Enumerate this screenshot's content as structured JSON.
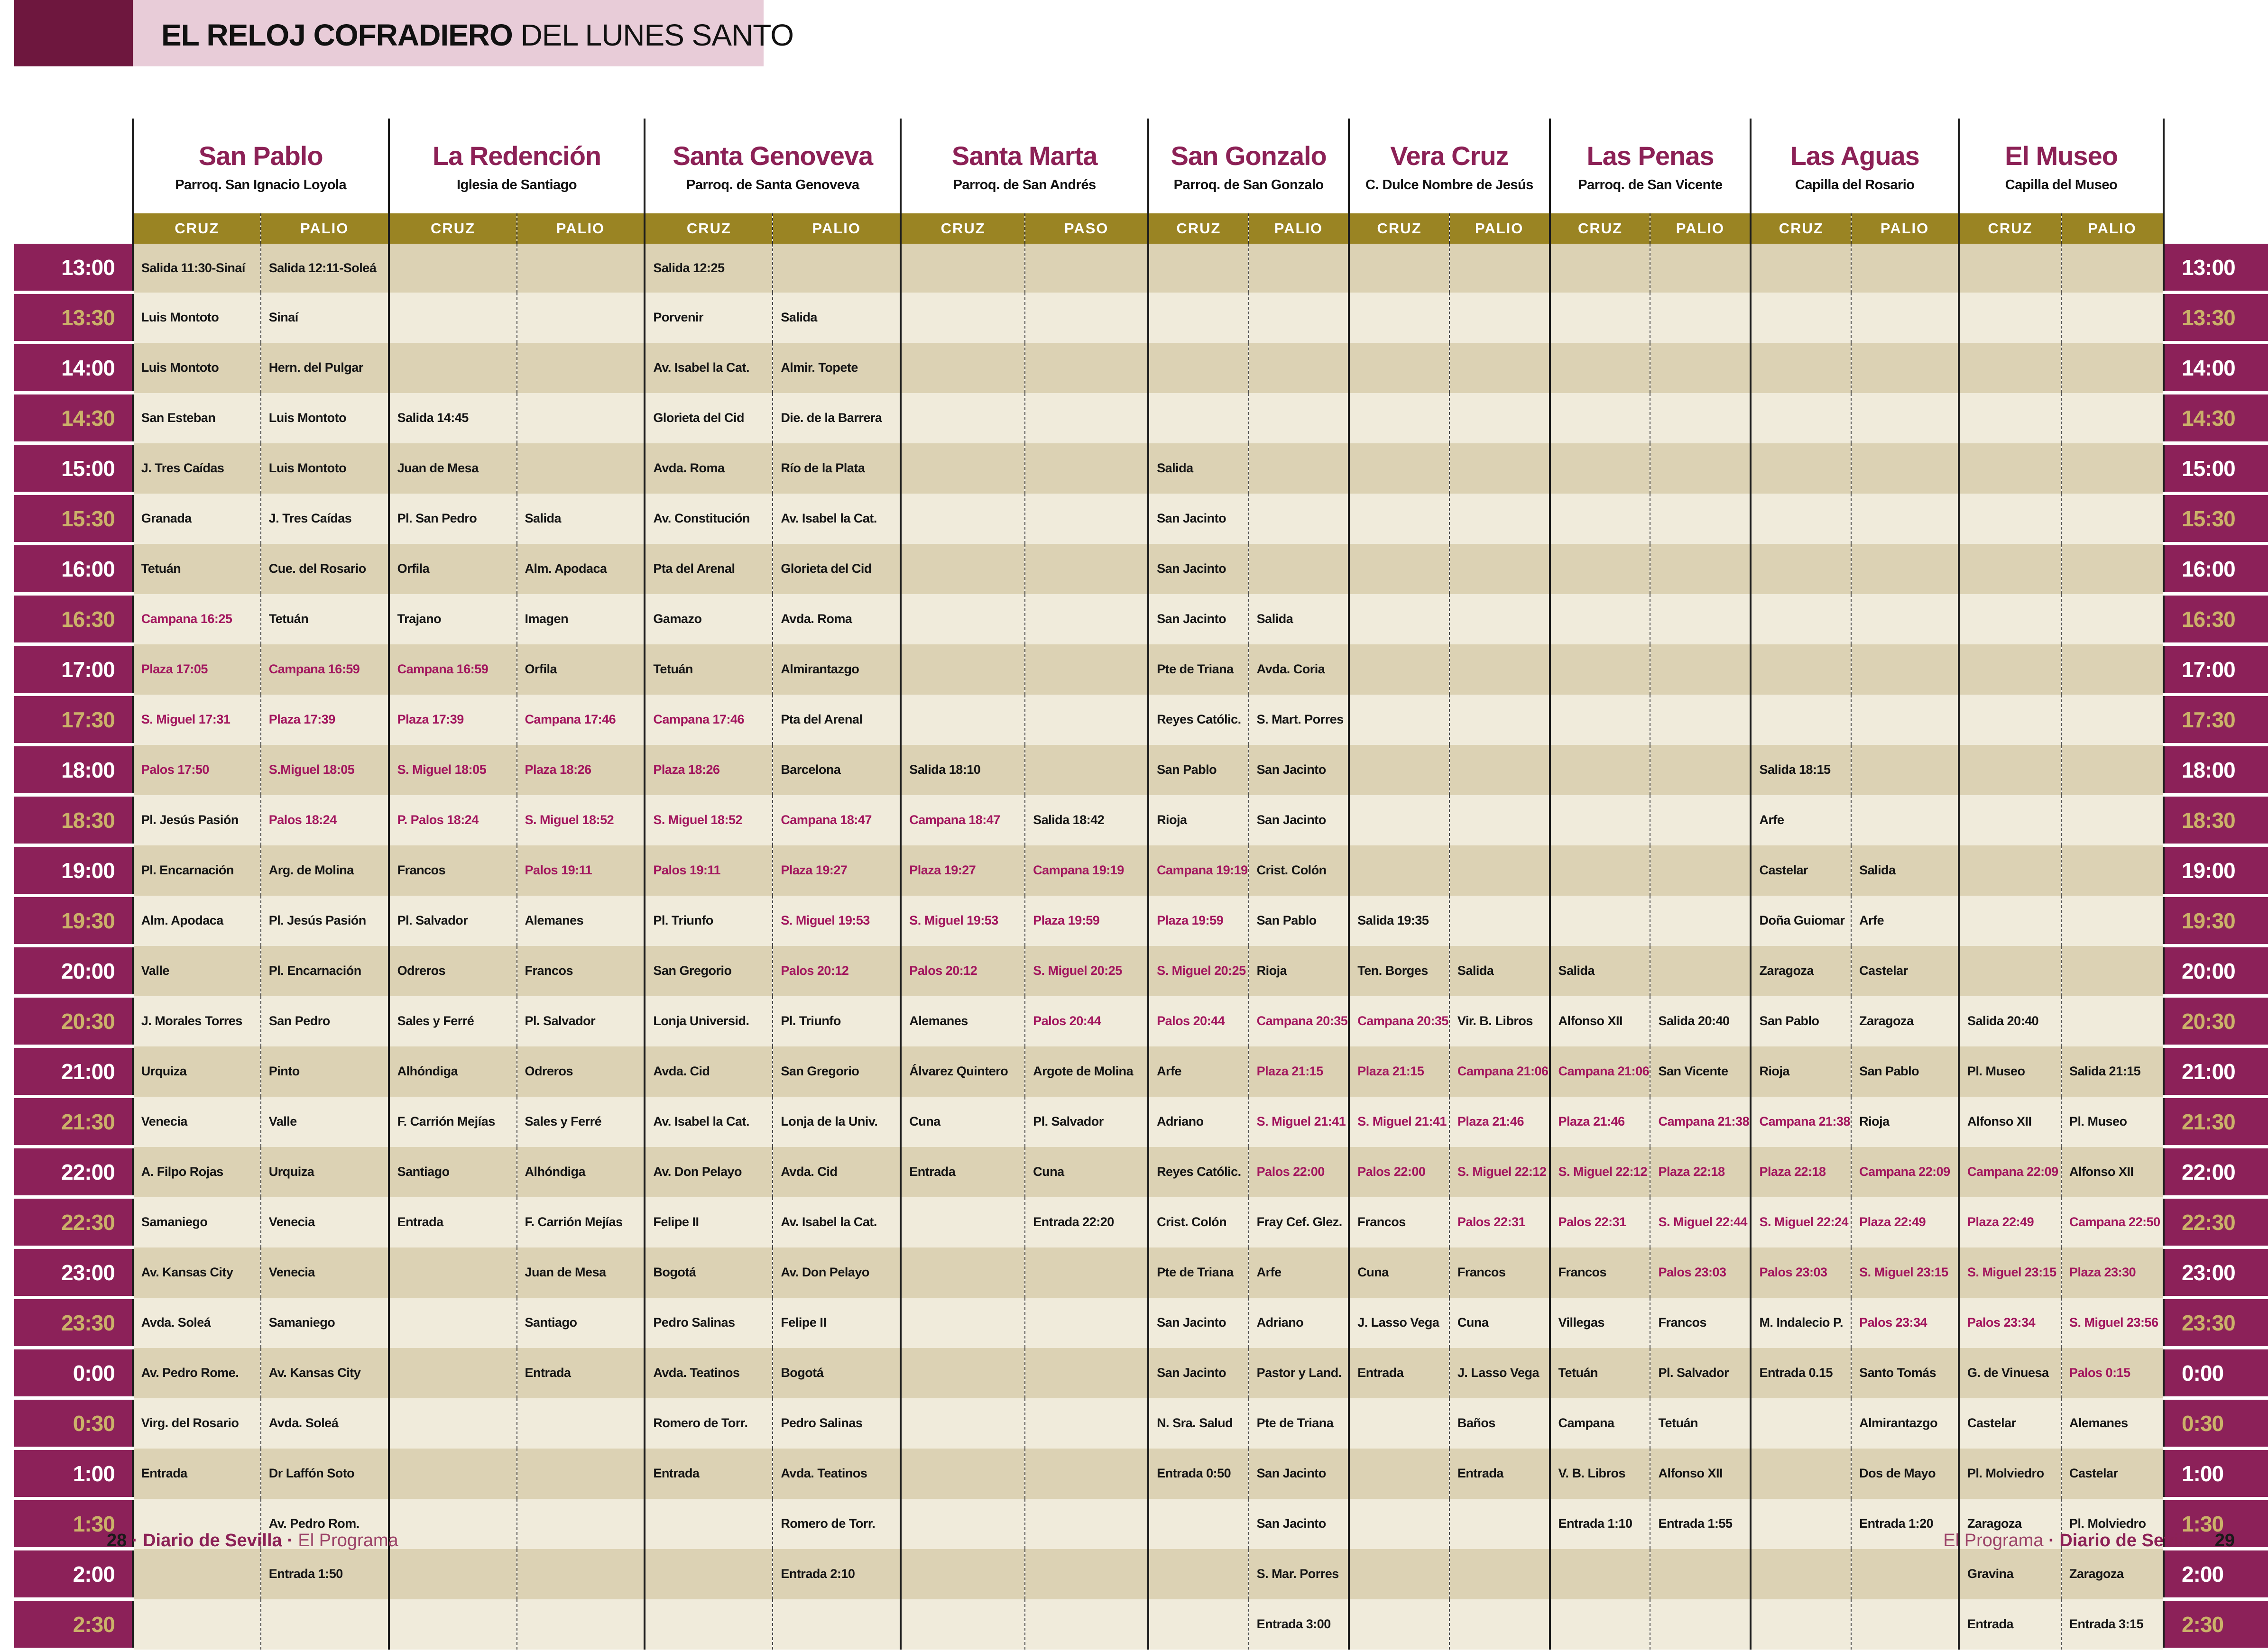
{
  "title": {
    "bold": "EL RELOJ COFRADIERO",
    "regular": " DEL LUNES SANTO"
  },
  "subcolumn_labels": {
    "cruz": "CRUZ",
    "palio": "PALIO",
    "paso": "PASO"
  },
  "times": [
    "13:00",
    "13:30",
    "14:00",
    "14:30",
    "15:00",
    "15:30",
    "16:00",
    "16:30",
    "17:00",
    "17:30",
    "18:00",
    "18:30",
    "19:00",
    "19:30",
    "20:00",
    "20:30",
    "21:00",
    "21:30",
    "22:00",
    "22:30",
    "23:00",
    "23:30",
    "0:00",
    "0:30",
    "1:00",
    "1:30",
    "2:00",
    "2:30"
  ],
  "hermandades": [
    {
      "name": "San Pablo",
      "church": "Parroq. San Ignacio Loyola",
      "sub1": "CRUZ",
      "sub2": "PALIO",
      "cruz": [
        "Salida 11:30-Sinaí",
        "Luis Montoto",
        "Luis Montoto",
        "San Esteban",
        "J. Tres Caídas",
        "Granada",
        "Tetuán",
        "Campana 16:25",
        "Plaza 17:05",
        "S. Miguel 17:31",
        "Palos 17:50",
        "Pl. Jesús Pasión",
        "Pl. Encarnación",
        "Alm. Apodaca",
        "Valle",
        "J. Morales Torres",
        "Urquiza",
        "Venecia",
        "A. Filpo Rojas",
        "Samaniego",
        "Av. Kansas City",
        "Avda. Soleá",
        "Av. Pedro Rome.",
        "Virg. del Rosario",
        "Entrada",
        "",
        "",
        ""
      ],
      "palio": [
        "Salida 12:11-Soleá",
        "Sinaí",
        "Hern. del Pulgar",
        "Luis Montoto",
        "Luis Montoto",
        "J. Tres Caídas",
        "Cue. del Rosario",
        "Tetuán",
        "Campana 16:59",
        "Plaza 17:39",
        "S.Miguel 18:05",
        "Palos 18:24",
        "Arg. de Molina",
        "Pl. Jesús Pasión",
        "Pl. Encarnación",
        "San Pedro",
        "Pinto",
        "Valle",
        "Urquiza",
        "Venecia",
        "Venecia",
        "Samaniego",
        "Av. Kansas City",
        "Avda. Soleá",
        "Dr Laffón Soto",
        "Av. Pedro Rom.",
        "Entrada 1:50",
        ""
      ]
    },
    {
      "name": "La Redención",
      "church": "Iglesia de Santiago",
      "sub1": "CRUZ",
      "sub2": "PALIO",
      "cruz": [
        "",
        "",
        "",
        "Salida 14:45",
        "Juan de Mesa",
        "Pl. San Pedro",
        "Orfila",
        "Trajano",
        "Campana 16:59",
        "Plaza 17:39",
        "S. Miguel 18:05",
        "P. Palos 18:24",
        "Francos",
        "Pl. Salvador",
        "Odreros",
        "Sales y Ferré",
        "Alhóndiga",
        "F. Carrión Mejías",
        "Santiago",
        "Entrada",
        "",
        "",
        "",
        "",
        "",
        "",
        "",
        ""
      ],
      "palio": [
        "",
        "",
        "",
        "",
        "",
        "Salida",
        "Alm. Apodaca",
        "Imagen",
        "Orfila",
        "Campana 17:46",
        "Plaza 18:26",
        "S. Miguel 18:52",
        "Palos 19:11",
        "Alemanes",
        "Francos",
        "Pl. Salvador",
        "Odreros",
        "Sales y Ferré",
        "Alhóndiga",
        "F. Carrión Mejías",
        "Juan de Mesa",
        "Santiago",
        "Entrada",
        "",
        "",
        "",
        "",
        ""
      ]
    },
    {
      "name": "Santa Genoveva",
      "church": "Parroq. de Santa Genoveva",
      "sub1": "CRUZ",
      "sub2": "PALIO",
      "cruz": [
        "Salida 12:25",
        "Porvenir",
        "Av. Isabel la Cat.",
        "Glorieta del Cid",
        "Avda. Roma",
        "Av. Constitución",
        "Pta del Arenal",
        "Gamazo",
        "Tetuán",
        "Campana 17:46",
        "Plaza 18:26",
        "S. Miguel 18:52",
        "Palos 19:11",
        "Pl. Triunfo",
        "San Gregorio",
        "Lonja Universid.",
        "Avda. Cid",
        "Av. Isabel la Cat.",
        "Av. Don Pelayo",
        "Felipe II",
        "Bogotá",
        "Pedro Salinas",
        "Avda. Teatinos",
        "Romero de Torr.",
        "Entrada",
        "",
        "",
        ""
      ],
      "palio": [
        "",
        "Salida",
        "Almir. Topete",
        "Die. de la Barrera",
        "Río de la Plata",
        "Av. Isabel la Cat.",
        "Glorieta del Cid",
        "Avda. Roma",
        "Almirantazgo",
        "Pta del Arenal",
        "Barcelona",
        "Campana 18:47",
        "Plaza 19:27",
        "S. Miguel 19:53",
        "Palos 20:12",
        "Pl. Triunfo",
        "San Gregorio",
        "Lonja de la Univ.",
        "Avda. Cid",
        "Av. Isabel la Cat.",
        "Av. Don Pelayo",
        "Felipe II",
        "Bogotá",
        "Pedro Salinas",
        "Avda. Teatinos",
        "Romero de Torr.",
        "Entrada 2:10",
        ""
      ]
    },
    {
      "name": "Santa Marta",
      "church": "Parroq. de San Andrés",
      "sub1": "CRUZ",
      "sub2": "PASO",
      "cruz": [
        "",
        "",
        "",
        "",
        "",
        "",
        "",
        "",
        "",
        "",
        "Salida 18:10",
        "Campana 18:47",
        "Plaza 19:27",
        "S. Miguel 19:53",
        "Palos 20:12",
        "Alemanes",
        "Álvarez Quintero",
        "Cuna",
        "Entrada",
        "",
        "",
        "",
        "",
        "",
        "",
        "",
        "",
        ""
      ],
      "palio": [
        "",
        "",
        "",
        "",
        "",
        "",
        "",
        "",
        "",
        "",
        "",
        "Salida 18:42",
        "Campana 19:19",
        "Plaza 19:59",
        "S. Miguel 20:25",
        "Palos 20:44",
        "Argote de Molina",
        "Pl. Salvador",
        "Cuna",
        "Entrada 22:20",
        "",
        "",
        "",
        "",
        "",
        "",
        "",
        ""
      ]
    },
    {
      "name": "San Gonzalo",
      "church": "Parroq. de San Gonzalo",
      "sub1": "CRUZ",
      "sub2": "PALIO",
      "cruz": [
        "",
        "",
        "",
        "",
        "Salida",
        "San Jacinto",
        "San Jacinto",
        "San Jacinto",
        "Pte de Triana",
        "Reyes Católic.",
        "San Pablo",
        "Rioja",
        "Campana 19:19",
        "Plaza 19:59",
        "S. Miguel 20:25",
        "Palos 20:44",
        "Arfe",
        "Adriano",
        "Reyes Católic.",
        "Crist. Colón",
        "Pte de Triana",
        "San Jacinto",
        "San Jacinto",
        "N. Sra. Salud",
        "Entrada 0:50",
        "",
        "",
        ""
      ],
      "palio": [
        "",
        "",
        "",
        "",
        "",
        "",
        "",
        "Salida",
        "Avda. Coria",
        "S. Mart. Porres",
        "San Jacinto",
        "San Jacinto",
        "Crist. Colón",
        "San Pablo",
        "Rioja",
        "Campana 20:35",
        "Plaza 21:15",
        "S. Miguel 21:41",
        "Palos 22:00",
        "Fray Cef. Glez.",
        "Arfe",
        "Adriano",
        "Pastor y Land.",
        "Pte de Triana",
        "San Jacinto",
        "San Jacinto",
        "S. Mar. Porres",
        "Entrada 3:00"
      ]
    },
    {
      "name": "Vera Cruz",
      "church": "C. Dulce Nombre de Jesús",
      "sub1": "CRUZ",
      "sub2": "PALIO",
      "cruz": [
        "",
        "",
        "",
        "",
        "",
        "",
        "",
        "",
        "",
        "",
        "",
        "",
        "",
        "Salida 19:35",
        "Ten. Borges",
        "Campana 20:35",
        "Plaza 21:15",
        "S. Miguel 21:41",
        "Palos 22:00",
        "Francos",
        "Cuna",
        "J. Lasso Vega",
        "Entrada",
        "",
        "",
        "",
        "",
        ""
      ],
      "palio": [
        "",
        "",
        "",
        "",
        "",
        "",
        "",
        "",
        "",
        "",
        "",
        "",
        "",
        "",
        "Salida",
        "Vir. B. Libros",
        "Campana 21:06",
        "Plaza 21:46",
        "S. Miguel 22:12",
        "Palos 22:31",
        "Francos",
        "Cuna",
        "J. Lasso Vega",
        "Baños",
        "Entrada",
        "",
        "",
        ""
      ]
    },
    {
      "name": "Las Penas",
      "church": "Parroq. de San Vicente",
      "sub1": "CRUZ",
      "sub2": "PALIO",
      "cruz": [
        "",
        "",
        "",
        "",
        "",
        "",
        "",
        "",
        "",
        "",
        "",
        "",
        "",
        "",
        "Salida",
        "Alfonso XII",
        "Campana 21:06",
        "Plaza 21:46",
        "S. Miguel 22:12",
        "Palos 22:31",
        "Francos",
        "Villegas",
        "Tetuán",
        "Campana",
        "V. B. Libros",
        "Entrada 1:10",
        "",
        ""
      ],
      "palio": [
        "",
        "",
        "",
        "",
        "",
        "",
        "",
        "",
        "",
        "",
        "",
        "",
        "",
        "",
        "",
        "Salida 20:40",
        "San Vicente",
        "Campana 21:38",
        "Plaza 22:18",
        "S. Miguel 22:44",
        "Palos 23:03",
        "Francos",
        "Pl. Salvador",
        "Tetuán",
        "Alfonso XII",
        "Entrada 1:55",
        "",
        ""
      ]
    },
    {
      "name": "Las Aguas",
      "church": "Capilla del Rosario",
      "sub1": "CRUZ",
      "sub2": "PALIO",
      "cruz": [
        "",
        "",
        "",
        "",
        "",
        "",
        "",
        "",
        "",
        "",
        "Salida 18:15",
        "Arfe",
        "Castelar",
        "Doña Guiomar",
        "Zaragoza",
        "San Pablo",
        "Rioja",
        "Campana 21:38",
        "Plaza 22:18",
        "S. Miguel 22:24",
        "Palos 23:03",
        "M. Indalecio P.",
        "Entrada 0.15",
        "",
        "",
        "",
        "",
        ""
      ],
      "palio": [
        "",
        "",
        "",
        "",
        "",
        "",
        "",
        "",
        "",
        "",
        "",
        "",
        "Salida",
        "Arfe",
        "Castelar",
        "Zaragoza",
        "San Pablo",
        "Rioja",
        "Campana 22:09",
        "Plaza 22:49",
        "S. Miguel 23:15",
        "Palos 23:34",
        "Santo Tomás",
        "Almirantazgo",
        "Dos de Mayo",
        "Entrada 1:20",
        "",
        ""
      ]
    },
    {
      "name": "El Museo",
      "church": "Capilla del Museo",
      "sub1": "CRUZ",
      "sub2": "PALIO",
      "cruz": [
        "",
        "",
        "",
        "",
        "",
        "",
        "",
        "",
        "",
        "",
        "",
        "",
        "",
        "",
        "",
        "Salida 20:40",
        "Pl. Museo",
        "Alfonso XII",
        "Campana 22:09",
        "Plaza 22:49",
        "S. Miguel 23:15",
        "Palos 23:34",
        "G. de Vinuesa",
        "Castelar",
        "Pl. Molviedro",
        "Zaragoza",
        "Gravina",
        "Entrada"
      ],
      "palio": [
        "",
        "",
        "",
        "",
        "",
        "",
        "",
        "",
        "",
        "",
        "",
        "",
        "",
        "",
        "",
        "",
        "Salida 21:15",
        "Pl. Museo",
        "Alfonso XII",
        "Campana 22:50",
        "Plaza 23:30",
        "S. Miguel 23:56",
        "Palos 0:15",
        "Alemanes",
        "Castelar",
        "Pl. Molviedro",
        "Zaragoza",
        "Entrada 3:15"
      ]
    }
  ],
  "footer": {
    "left_page": "28",
    "right_page": "29",
    "brand": "Diario de Sevilla",
    "program": "El Programa",
    "separator": "·"
  },
  "colors": {
    "time_column": "#8C2159",
    "band_olive": "#9A8423",
    "row_dark": "#DCD2B4",
    "row_light": "#F0EBDB",
    "control_time_red": "#A2165E",
    "hermandad_name": "#8C2156",
    "gold_halfhour": "#CBB169",
    "title_box_pink": "#E8CCD8",
    "top_block_maroon": "#6E173E",
    "clock_icon": "#B2698C"
  }
}
